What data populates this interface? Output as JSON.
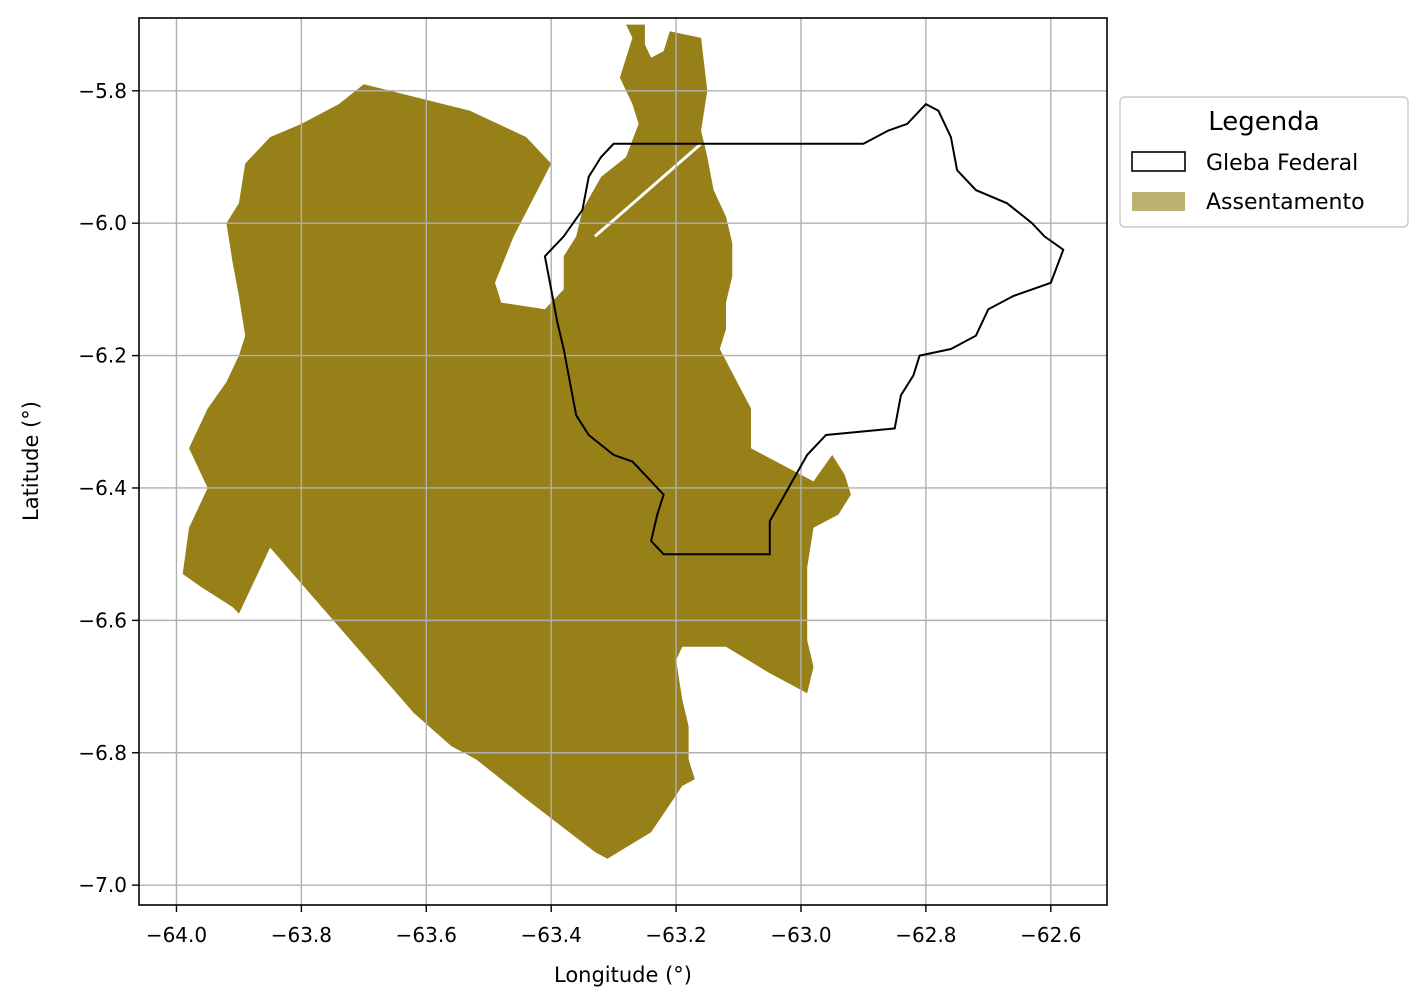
{
  "map": {
    "xlabel": "Longitude (°)",
    "ylabel": "Latitude (°)",
    "xlim": [
      -64.06,
      -62.51
    ],
    "ylim": [
      -7.03,
      -5.69
    ],
    "grid": true,
    "xticks": [
      {
        "value": -64.0,
        "label": "−64.0"
      },
      {
        "value": -63.8,
        "label": "−63.8"
      },
      {
        "value": -63.6,
        "label": "−63.6"
      },
      {
        "value": -63.4,
        "label": "−63.4"
      },
      {
        "value": -63.2,
        "label": "−63.2"
      },
      {
        "value": -63.0,
        "label": "−63.0"
      },
      {
        "value": -62.8,
        "label": "−62.8"
      },
      {
        "value": -62.6,
        "label": "−62.6"
      }
    ],
    "yticks": [
      {
        "value": -5.8,
        "label": "−5.8"
      },
      {
        "value": -6.0,
        "label": "−6.0"
      },
      {
        "value": -6.2,
        "label": "−6.2"
      },
      {
        "value": -6.4,
        "label": "−6.4"
      },
      {
        "value": -6.6,
        "label": "−6.6"
      },
      {
        "value": -6.8,
        "label": "−6.8"
      },
      {
        "value": -7.0,
        "label": "−7.0"
      }
    ],
    "legend": {
      "title": "Legenda",
      "placement": "outside-upper-right",
      "items": [
        {
          "label": "Gleba Federal",
          "style": "outline",
          "color": "#000000"
        },
        {
          "label": "Assentamento",
          "style": "fill",
          "color": "#bdb271"
        }
      ]
    },
    "colors": {
      "assentamento": "#978018",
      "gleba_federal": "#000000",
      "grid": "#b0b0b0"
    },
    "layers": {
      "assentamento_polygon": [
        [
          -63.7,
          -5.79
        ],
        [
          -63.53,
          -5.83
        ],
        [
          -63.44,
          -5.87
        ],
        [
          -63.4,
          -5.91
        ],
        [
          -63.46,
          -6.02
        ],
        [
          -63.49,
          -6.09
        ],
        [
          -63.48,
          -6.12
        ],
        [
          -63.41,
          -6.13
        ],
        [
          -63.38,
          -6.1
        ],
        [
          -63.38,
          -6.05
        ],
        [
          -63.36,
          -6.02
        ],
        [
          -63.35,
          -5.98
        ],
        [
          -63.32,
          -5.93
        ],
        [
          -63.28,
          -5.9
        ],
        [
          -63.26,
          -5.85
        ],
        [
          -63.27,
          -5.82
        ],
        [
          -63.29,
          -5.78
        ],
        [
          -63.28,
          -5.75
        ],
        [
          -63.27,
          -5.72
        ],
        [
          -63.28,
          -5.7
        ],
        [
          -63.25,
          -5.7
        ],
        [
          -63.25,
          -5.73
        ],
        [
          -63.24,
          -5.75
        ],
        [
          -63.22,
          -5.74
        ],
        [
          -63.21,
          -5.71
        ],
        [
          -63.16,
          -5.72
        ],
        [
          -63.15,
          -5.8
        ],
        [
          -63.16,
          -5.86
        ],
        [
          -63.15,
          -5.9
        ],
        [
          -63.14,
          -5.95
        ],
        [
          -63.12,
          -5.99
        ],
        [
          -63.11,
          -6.03
        ],
        [
          -63.11,
          -6.08
        ],
        [
          -63.12,
          -6.12
        ],
        [
          -63.12,
          -6.16
        ],
        [
          -63.13,
          -6.19
        ],
        [
          -63.08,
          -6.28
        ],
        [
          -63.08,
          -6.34
        ],
        [
          -62.98,
          -6.39
        ],
        [
          -62.95,
          -6.35
        ],
        [
          -62.93,
          -6.38
        ],
        [
          -62.92,
          -6.41
        ],
        [
          -62.94,
          -6.44
        ],
        [
          -62.98,
          -6.46
        ],
        [
          -62.99,
          -6.52
        ],
        [
          -62.99,
          -6.58
        ],
        [
          -62.99,
          -6.63
        ],
        [
          -62.98,
          -6.67
        ],
        [
          -62.99,
          -6.71
        ],
        [
          -63.05,
          -6.68
        ],
        [
          -63.12,
          -6.64
        ],
        [
          -63.19,
          -6.64
        ],
        [
          -63.2,
          -6.66
        ],
        [
          -63.19,
          -6.72
        ],
        [
          -63.18,
          -6.76
        ],
        [
          -63.18,
          -6.81
        ],
        [
          -63.17,
          -6.84
        ],
        [
          -63.19,
          -6.85
        ],
        [
          -63.24,
          -6.92
        ],
        [
          -63.31,
          -6.96
        ],
        [
          -63.33,
          -6.95
        ],
        [
          -63.44,
          -6.87
        ],
        [
          -63.52,
          -6.81
        ],
        [
          -63.56,
          -6.79
        ],
        [
          -63.62,
          -6.74
        ],
        [
          -63.85,
          -6.49
        ],
        [
          -63.9,
          -6.59
        ],
        [
          -63.91,
          -6.58
        ],
        [
          -63.96,
          -6.55
        ],
        [
          -63.99,
          -6.53
        ],
        [
          -63.98,
          -6.46
        ],
        [
          -63.95,
          -6.4
        ],
        [
          -63.98,
          -6.34
        ],
        [
          -63.95,
          -6.28
        ],
        [
          -63.92,
          -6.24
        ],
        [
          -63.9,
          -6.2
        ],
        [
          -63.89,
          -6.17
        ],
        [
          -63.9,
          -6.11
        ],
        [
          -63.91,
          -6.06
        ],
        [
          -63.92,
          -6.0
        ],
        [
          -63.9,
          -5.97
        ],
        [
          -63.89,
          -5.91
        ],
        [
          -63.85,
          -5.87
        ],
        [
          -63.8,
          -5.85
        ],
        [
          -63.74,
          -5.82
        ]
      ],
      "gleba_federal_outline": [
        [
          -63.3,
          -5.88
        ],
        [
          -62.9,
          -5.88
        ],
        [
          -62.88,
          -5.87
        ],
        [
          -62.86,
          -5.86
        ],
        [
          -62.83,
          -5.85
        ],
        [
          -62.8,
          -5.82
        ],
        [
          -62.78,
          -5.83
        ],
        [
          -62.76,
          -5.87
        ],
        [
          -62.75,
          -5.92
        ],
        [
          -62.72,
          -5.95
        ],
        [
          -62.67,
          -5.97
        ],
        [
          -62.63,
          -6.0
        ],
        [
          -62.61,
          -6.02
        ],
        [
          -62.58,
          -6.04
        ],
        [
          -62.6,
          -6.09
        ],
        [
          -62.66,
          -6.11
        ],
        [
          -62.7,
          -6.13
        ],
        [
          -62.72,
          -6.17
        ],
        [
          -62.76,
          -6.19
        ],
        [
          -62.81,
          -6.2
        ],
        [
          -62.82,
          -6.23
        ],
        [
          -62.84,
          -6.26
        ],
        [
          -62.85,
          -6.31
        ],
        [
          -62.96,
          -6.32
        ],
        [
          -62.99,
          -6.35
        ],
        [
          -63.05,
          -6.45
        ],
        [
          -63.05,
          -6.5
        ],
        [
          -63.22,
          -6.5
        ],
        [
          -63.24,
          -6.48
        ],
        [
          -63.23,
          -6.44
        ],
        [
          -63.22,
          -6.41
        ],
        [
          -63.25,
          -6.38
        ],
        [
          -63.27,
          -6.36
        ],
        [
          -63.3,
          -6.35
        ],
        [
          -63.34,
          -6.32
        ],
        [
          -63.36,
          -6.29
        ],
        [
          -63.37,
          -6.24
        ],
        [
          -63.38,
          -6.19
        ],
        [
          -63.39,
          -6.15
        ],
        [
          -63.4,
          -6.1
        ],
        [
          -63.41,
          -6.05
        ],
        [
          -63.38,
          -6.02
        ],
        [
          -63.35,
          -5.98
        ],
        [
          -63.34,
          -5.93
        ],
        [
          -63.32,
          -5.9
        ]
      ],
      "white_line": [
        [
          -63.33,
          -6.02
        ],
        [
          -63.16,
          -5.88
        ]
      ]
    }
  }
}
